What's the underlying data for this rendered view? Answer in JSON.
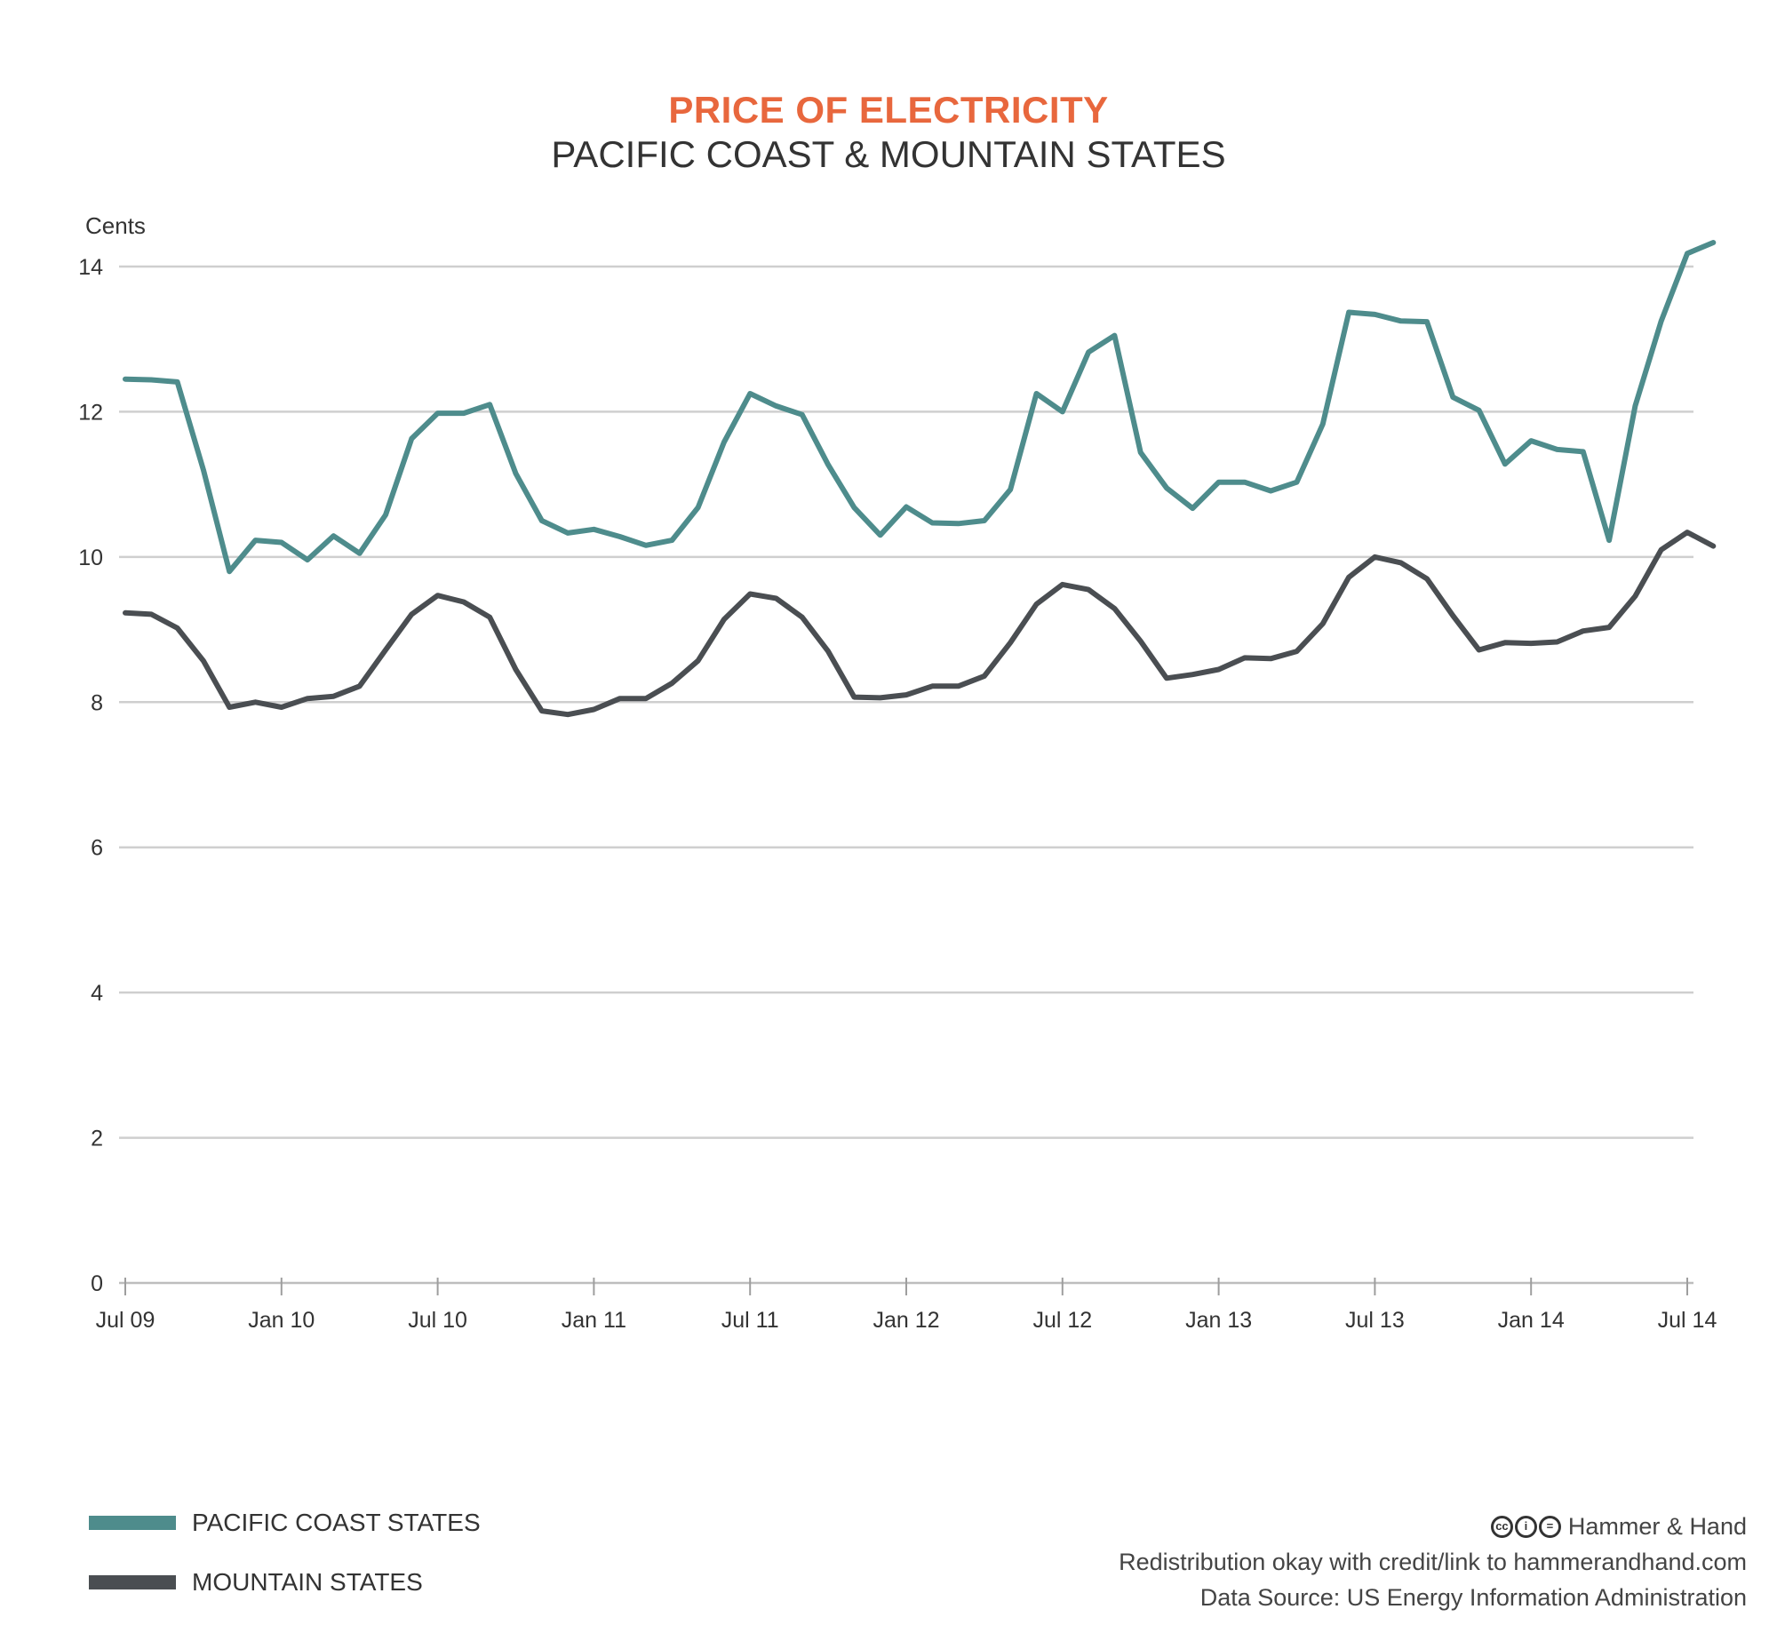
{
  "title": "PRICE OF ELECTRICITY",
  "subtitle": "PACIFIC COAST & MOUNTAIN STATES",
  "legend": [
    {
      "label": "PACIFIC COAST STATES",
      "color": "#4e8c8c"
    },
    {
      "label": "MOUNTAIN STATES",
      "color": "#4a4e52"
    }
  ],
  "credits": {
    "brand": "Hammer & Hand",
    "license_icons": [
      "cc-icon",
      "attribution-icon",
      "no-derivatives-icon"
    ],
    "redistribution": "Redistribution okay with credit/link to hammerandhand.com",
    "source": "Data Source: US Energy Information Administration"
  },
  "chart_data": {
    "type": "line",
    "title": "PRICE OF ELECTRICITY",
    "subtitle": "PACIFIC COAST & MOUNTAIN STATES",
    "ylabel": "Cents",
    "xlabel": "",
    "ylim": [
      0,
      14
    ],
    "yticks": [
      0,
      2,
      4,
      6,
      8,
      10,
      12,
      14
    ],
    "grid": true,
    "legend_position": "bottom-left",
    "x_start": "Jul 09",
    "x_ticks": [
      "Jul 09",
      "Jan 10",
      "Jul 10",
      "Jan 11",
      "Jul 11",
      "Jan 12",
      "Jul 12",
      "Jan 13",
      "Jul 13",
      "Jan 14",
      "Jul 14"
    ],
    "x": [
      "Jul 09",
      "Aug 09",
      "Sep 09",
      "Oct 09",
      "Nov 09",
      "Dec 09",
      "Jan 10",
      "Feb 10",
      "Mar 10",
      "Apr 10",
      "May 10",
      "Jun 10",
      "Jul 10",
      "Aug 10",
      "Sep 10",
      "Oct 10",
      "Nov 10",
      "Dec 10",
      "Jan 11",
      "Feb 11",
      "Mar 11",
      "Apr 11",
      "May 11",
      "Jun 11",
      "Jul 11",
      "Aug 11",
      "Sep 11",
      "Oct 11",
      "Nov 11",
      "Dec 11",
      "Jan 12",
      "Feb 12",
      "Mar 12",
      "Apr 12",
      "May 12",
      "Jun 12",
      "Jul 12",
      "Aug 12",
      "Sep 12",
      "Oct 12",
      "Nov 12",
      "Dec 12",
      "Jan 13",
      "Feb 13",
      "Mar 13",
      "Apr 13",
      "May 13",
      "Jun 13",
      "Jul 13",
      "Aug 13",
      "Sep 13",
      "Oct 13",
      "Nov 13",
      "Dec 13",
      "Jan 14",
      "Feb 14",
      "Mar 14",
      "Apr 14",
      "May 14",
      "Jun 14",
      "Jul 14",
      "Aug 14"
    ],
    "series": [
      {
        "name": "PACIFIC COAST STATES",
        "color": "#4e8c8c",
        "values": [
          12.45,
          12.44,
          12.41,
          11.2,
          9.8,
          10.23,
          10.2,
          9.96,
          10.29,
          10.05,
          10.58,
          11.63,
          11.98,
          11.98,
          12.1,
          11.15,
          10.5,
          10.33,
          10.38,
          10.28,
          10.16,
          10.23,
          10.68,
          11.58,
          12.25,
          12.08,
          11.96,
          11.27,
          10.68,
          10.3,
          10.69,
          10.47,
          10.46,
          10.5,
          10.93,
          12.25,
          12.0,
          12.82,
          13.05,
          11.44,
          10.95,
          10.67,
          11.03,
          11.03,
          10.91,
          11.03,
          11.83,
          13.37,
          13.34,
          13.25,
          13.24,
          12.2,
          12.02,
          11.28,
          11.6,
          11.48,
          11.45,
          10.23,
          12.08,
          13.25,
          14.18,
          14.33
        ]
      },
      {
        "name": "MOUNTAIN STATES",
        "color": "#4a4e52",
        "values": [
          9.23,
          9.21,
          9.02,
          8.57,
          7.93,
          8.0,
          7.93,
          8.05,
          8.08,
          8.22,
          8.72,
          9.21,
          9.47,
          9.38,
          9.17,
          8.45,
          7.88,
          7.83,
          7.9,
          8.05,
          8.05,
          8.26,
          8.57,
          9.14,
          9.49,
          9.43,
          9.17,
          8.7,
          8.07,
          8.06,
          8.1,
          8.22,
          8.22,
          8.36,
          8.82,
          9.35,
          9.62,
          9.55,
          9.29,
          8.84,
          8.33,
          8.38,
          8.45,
          8.61,
          8.6,
          8.7,
          9.08,
          9.72,
          10.0,
          9.92,
          9.7,
          9.19,
          8.72,
          8.82,
          8.81,
          8.83,
          8.98,
          9.03,
          9.46,
          10.1,
          10.34,
          10.15
        ]
      }
    ]
  }
}
